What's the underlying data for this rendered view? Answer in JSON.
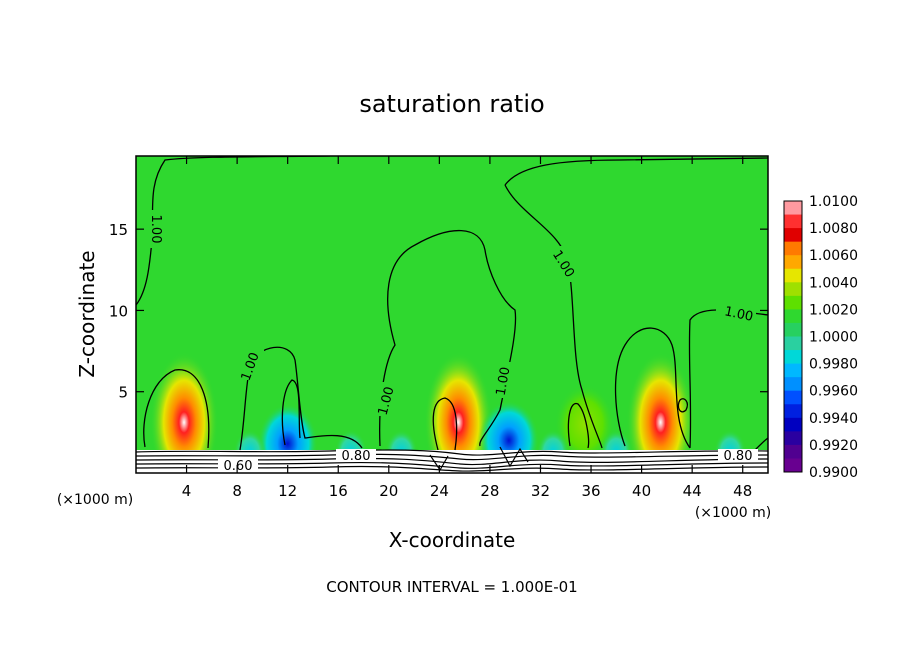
{
  "chart_data": {
    "type": "heatmap",
    "title": "saturation ratio",
    "xlabel": "X-coordinate",
    "ylabel": "Z-coordinate",
    "x_unit_left": "(×1000 m)",
    "x_unit_right": "(×1000 m)",
    "xlim": [
      0,
      50
    ],
    "ylim": [
      0,
      19.5
    ],
    "x_ticks": [
      "4",
      "8",
      "12",
      "16",
      "20",
      "24",
      "28",
      "32",
      "36",
      "40",
      "44",
      "48"
    ],
    "y_ticks": [
      "5",
      "10",
      "15"
    ],
    "footer": "CONTOUR INTERVAL = 1.000E-01",
    "colorbar": {
      "labels": [
        "1.0100",
        "1.0080",
        "1.0060",
        "1.0040",
        "1.0020",
        "1.0000",
        "0.9980",
        "0.9960",
        "0.9940",
        "0.9920",
        "0.9900"
      ],
      "colors": [
        "#ff9aa0",
        "#ff3030",
        "#e00000",
        "#ff7a00",
        "#ffa800",
        "#e6e600",
        "#9fe000",
        "#5ee000",
        "#2fd82f",
        "#27d060",
        "#2ad0a0",
        "#00d8d8",
        "#00b8ff",
        "#0090ff",
        "#0050ff",
        "#0020e0",
        "#0000c0",
        "#2a00a0",
        "#500090",
        "#680090"
      ]
    },
    "contour_labels": [
      "1.00",
      "1.00",
      "1.00",
      "1.00",
      "1.00",
      "1.00",
      "0.60",
      "0.80",
      "0.80"
    ],
    "hotspots": [
      {
        "x": 3.8,
        "z": 2.5,
        "level": "high"
      },
      {
        "x": 25.5,
        "z": 2.5,
        "level": "high"
      },
      {
        "x": 41.5,
        "z": 2.5,
        "level": "high"
      },
      {
        "x": 29.5,
        "z": 2.0,
        "level": "low"
      },
      {
        "x": 12.0,
        "z": 1.8,
        "level": "low"
      },
      {
        "x": 35.5,
        "z": 3.0,
        "level": "mid"
      }
    ]
  }
}
